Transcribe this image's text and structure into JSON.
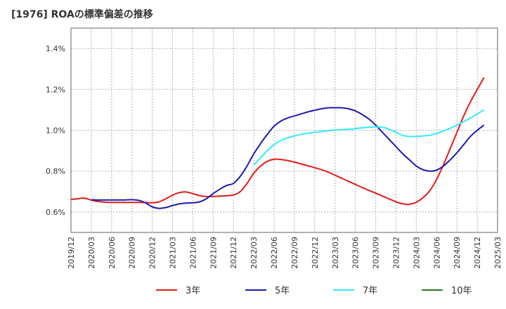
{
  "chart_data": {
    "type": "line",
    "title": "[1976]  ROAの標準偏差の推移",
    "ylim": [
      0.5,
      1.5
    ],
    "y_ticks": [
      {
        "value": 0.6,
        "label": "0.6%"
      },
      {
        "value": 0.8,
        "label": "0.8%"
      },
      {
        "value": 1.0,
        "label": "1.0%"
      },
      {
        "value": 1.2,
        "label": "1.2%"
      },
      {
        "value": 1.4,
        "label": "1.4%"
      }
    ],
    "x_ticks": [
      "2019/12",
      "2020/03",
      "2020/06",
      "2020/09",
      "2020/12",
      "2021/03",
      "2021/06",
      "2021/09",
      "2021/12",
      "2022/03",
      "2022/06",
      "2022/09",
      "2022/12",
      "2023/03",
      "2023/06",
      "2023/09",
      "2023/12",
      "2024/03",
      "2024/06",
      "2024/09",
      "2024/12",
      "2025/03"
    ],
    "grid": true,
    "legend_position": "bottom",
    "series": [
      {
        "name": "3年",
        "color": "#e31a1c",
        "points": [
          [
            "2019/12",
            0.662
          ],
          [
            "2020/01",
            0.665
          ],
          [
            "2020/02",
            0.668
          ],
          [
            "2020/03",
            0.658
          ],
          [
            "2020/04",
            0.652
          ],
          [
            "2020/05",
            0.648
          ],
          [
            "2020/06",
            0.647
          ],
          [
            "2020/07",
            0.647
          ],
          [
            "2020/08",
            0.647
          ],
          [
            "2020/09",
            0.647
          ],
          [
            "2020/10",
            0.647
          ],
          [
            "2020/11",
            0.646
          ],
          [
            "2020/12",
            0.645
          ],
          [
            "2021/01",
            0.65
          ],
          [
            "2021/02",
            0.665
          ],
          [
            "2021/03",
            0.682
          ],
          [
            "2021/04",
            0.695
          ],
          [
            "2021/05",
            0.698
          ],
          [
            "2021/06",
            0.69
          ],
          [
            "2021/07",
            0.68
          ],
          [
            "2021/08",
            0.676
          ],
          [
            "2021/09",
            0.676
          ],
          [
            "2021/10",
            0.678
          ],
          [
            "2021/11",
            0.68
          ],
          [
            "2021/12",
            0.683
          ],
          [
            "2022/01",
            0.7
          ],
          [
            "2022/02",
            0.74
          ],
          [
            "2022/03",
            0.79
          ],
          [
            "2022/04",
            0.825
          ],
          [
            "2022/05",
            0.848
          ],
          [
            "2022/06",
            0.858
          ],
          [
            "2022/07",
            0.857
          ],
          [
            "2022/08",
            0.852
          ],
          [
            "2022/09",
            0.844
          ],
          [
            "2022/10",
            0.835
          ],
          [
            "2022/11",
            0.826
          ],
          [
            "2022/12",
            0.817
          ],
          [
            "2023/01",
            0.807
          ],
          [
            "2023/02",
            0.795
          ],
          [
            "2023/03",
            0.78
          ],
          [
            "2023/04",
            0.765
          ],
          [
            "2023/05",
            0.75
          ],
          [
            "2023/06",
            0.735
          ],
          [
            "2023/07",
            0.72
          ],
          [
            "2023/08",
            0.706
          ],
          [
            "2023/09",
            0.692
          ],
          [
            "2023/10",
            0.678
          ],
          [
            "2023/11",
            0.664
          ],
          [
            "2023/12",
            0.65
          ],
          [
            "2024/01",
            0.64
          ],
          [
            "2024/02",
            0.638
          ],
          [
            "2024/03",
            0.648
          ],
          [
            "2024/04",
            0.67
          ],
          [
            "2024/05",
            0.705
          ],
          [
            "2024/06",
            0.76
          ],
          [
            "2024/07",
            0.83
          ],
          [
            "2024/08",
            0.91
          ],
          [
            "2024/09",
            0.99
          ],
          [
            "2024/10",
            1.07
          ],
          [
            "2024/11",
            1.14
          ],
          [
            "2024/12",
            1.2
          ],
          [
            "2025/01",
            1.258
          ]
        ]
      },
      {
        "name": "5年",
        "color": "#1a1ab4",
        "points": [
          [
            "2020/03",
            0.66
          ],
          [
            "2020/04",
            0.659
          ],
          [
            "2020/05",
            0.659
          ],
          [
            "2020/06",
            0.659
          ],
          [
            "2020/07",
            0.659
          ],
          [
            "2020/08",
            0.659
          ],
          [
            "2020/09",
            0.66
          ],
          [
            "2020/10",
            0.657
          ],
          [
            "2020/11",
            0.645
          ],
          [
            "2020/12",
            0.625
          ],
          [
            "2021/01",
            0.618
          ],
          [
            "2021/02",
            0.622
          ],
          [
            "2021/03",
            0.632
          ],
          [
            "2021/04",
            0.64
          ],
          [
            "2021/05",
            0.644
          ],
          [
            "2021/06",
            0.645
          ],
          [
            "2021/07",
            0.65
          ],
          [
            "2021/08",
            0.665
          ],
          [
            "2021/09",
            0.69
          ],
          [
            "2021/10",
            0.712
          ],
          [
            "2021/11",
            0.73
          ],
          [
            "2021/12",
            0.74
          ],
          [
            "2022/01",
            0.775
          ],
          [
            "2022/02",
            0.825
          ],
          [
            "2022/03",
            0.885
          ],
          [
            "2022/04",
            0.935
          ],
          [
            "2022/05",
            0.98
          ],
          [
            "2022/06",
            1.02
          ],
          [
            "2022/07",
            1.045
          ],
          [
            "2022/08",
            1.06
          ],
          [
            "2022/09",
            1.07
          ],
          [
            "2022/10",
            1.08
          ],
          [
            "2022/11",
            1.09
          ],
          [
            "2022/12",
            1.098
          ],
          [
            "2023/01",
            1.105
          ],
          [
            "2023/02",
            1.11
          ],
          [
            "2023/03",
            1.11
          ],
          [
            "2023/04",
            1.11
          ],
          [
            "2023/05",
            1.105
          ],
          [
            "2023/06",
            1.095
          ],
          [
            "2023/07",
            1.077
          ],
          [
            "2023/08",
            1.055
          ],
          [
            "2023/09",
            1.025
          ],
          [
            "2023/10",
            0.99
          ],
          [
            "2023/11",
            0.955
          ],
          [
            "2023/12",
            0.92
          ],
          [
            "2024/01",
            0.885
          ],
          [
            "2024/02",
            0.855
          ],
          [
            "2024/03",
            0.825
          ],
          [
            "2024/04",
            0.807
          ],
          [
            "2024/05",
            0.8
          ],
          [
            "2024/06",
            0.805
          ],
          [
            "2024/07",
            0.825
          ],
          [
            "2024/08",
            0.855
          ],
          [
            "2024/09",
            0.89
          ],
          [
            "2024/10",
            0.93
          ],
          [
            "2024/11",
            0.97
          ],
          [
            "2024/12",
            1.0
          ],
          [
            "2025/01",
            1.025
          ]
        ]
      },
      {
        "name": "7年",
        "color": "#33eaf2",
        "points": [
          [
            "2022/03",
            0.83
          ],
          [
            "2022/04",
            0.865
          ],
          [
            "2022/05",
            0.9
          ],
          [
            "2022/06",
            0.93
          ],
          [
            "2022/07",
            0.95
          ],
          [
            "2022/08",
            0.963
          ],
          [
            "2022/09",
            0.972
          ],
          [
            "2022/10",
            0.98
          ],
          [
            "2022/11",
            0.986
          ],
          [
            "2022/12",
            0.99
          ],
          [
            "2023/01",
            0.994
          ],
          [
            "2023/02",
            0.998
          ],
          [
            "2023/03",
            1.001
          ],
          [
            "2023/04",
            1.003
          ],
          [
            "2023/05",
            1.005
          ],
          [
            "2023/06",
            1.008
          ],
          [
            "2023/07",
            1.012
          ],
          [
            "2023/08",
            1.015
          ],
          [
            "2023/09",
            1.016
          ],
          [
            "2023/10",
            1.015
          ],
          [
            "2023/11",
            1.005
          ],
          [
            "2023/12",
            0.99
          ],
          [
            "2024/01",
            0.975
          ],
          [
            "2024/02",
            0.97
          ],
          [
            "2024/03",
            0.97
          ],
          [
            "2024/04",
            0.972
          ],
          [
            "2024/05",
            0.976
          ],
          [
            "2024/06",
            0.985
          ],
          [
            "2024/07",
            0.997
          ],
          [
            "2024/08",
            1.01
          ],
          [
            "2024/09",
            1.025
          ],
          [
            "2024/10",
            1.042
          ],
          [
            "2024/11",
            1.06
          ],
          [
            "2024/12",
            1.08
          ],
          [
            "2025/01",
            1.1
          ]
        ]
      },
      {
        "name": "10年",
        "color": "#1e7d1e",
        "points": []
      }
    ]
  }
}
